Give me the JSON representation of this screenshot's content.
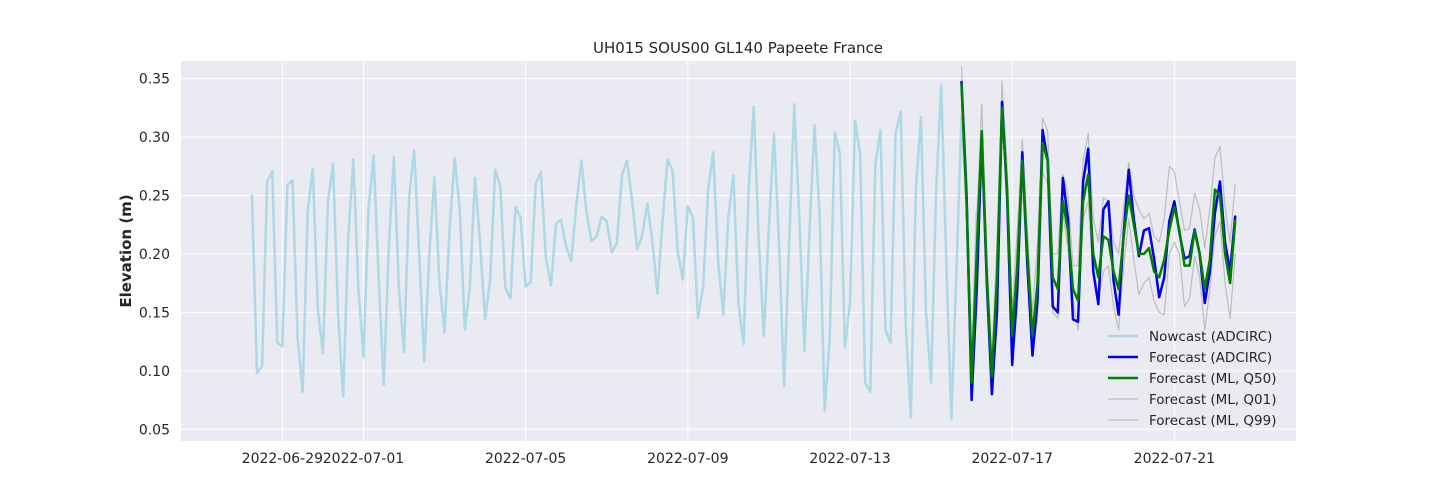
{
  "chart_data": {
    "type": "line",
    "title": "UH015 SOUS00 GL140 Papeete France",
    "xlabel": "",
    "ylabel": "Elevation (m)",
    "xlim": [
      "2022-06-26T12:00",
      "2022-07-24T00:00"
    ],
    "ylim": [
      0.04,
      0.365
    ],
    "x_ticks": [
      "2022-06-29",
      "2022-07-01",
      "2022-07-05",
      "2022-07-09",
      "2022-07-13",
      "2022-07-17",
      "2022-07-21"
    ],
    "y_ticks": [
      "0.05",
      "0.10",
      "0.15",
      "0.20",
      "0.25",
      "0.30",
      "0.35"
    ],
    "grid": true,
    "legend_position": "lower-right",
    "series": [
      {
        "name": "Nowcast (ADCIRC)",
        "color": "#add8e6",
        "start": "2022-06-28T06:00",
        "step_hours": 3,
        "values": [
          0.25,
          0.098,
          0.104,
          0.262,
          0.271,
          0.124,
          0.121,
          0.259,
          0.263,
          0.128,
          0.082,
          0.236,
          0.273,
          0.153,
          0.115,
          0.245,
          0.277,
          0.148,
          0.078,
          0.214,
          0.281,
          0.17,
          0.112,
          0.238,
          0.284,
          0.18,
          0.088,
          0.205,
          0.283,
          0.17,
          0.116,
          0.248,
          0.289,
          0.2,
          0.108,
          0.2,
          0.266,
          0.175,
          0.133,
          0.222,
          0.282,
          0.238,
          0.135,
          0.172,
          0.265,
          0.21,
          0.144,
          0.178,
          0.272,
          0.258,
          0.171,
          0.162,
          0.24,
          0.231,
          0.172,
          0.176,
          0.26,
          0.27,
          0.197,
          0.173,
          0.226,
          0.229,
          0.206,
          0.194,
          0.242,
          0.28,
          0.236,
          0.211,
          0.215,
          0.232,
          0.228,
          0.201,
          0.209,
          0.267,
          0.28,
          0.246,
          0.204,
          0.216,
          0.243,
          0.211,
          0.166,
          0.228,
          0.281,
          0.271,
          0.202,
          0.178,
          0.241,
          0.231,
          0.145,
          0.171,
          0.254,
          0.287,
          0.193,
          0.148,
          0.232,
          0.267,
          0.157,
          0.123,
          0.255,
          0.326,
          0.211,
          0.13,
          0.224,
          0.303,
          0.209,
          0.087,
          0.21,
          0.328,
          0.232,
          0.117,
          0.218,
          0.31,
          0.234,
          0.066,
          0.128,
          0.304,
          0.286,
          0.12,
          0.158,
          0.314,
          0.285,
          0.09,
          0.082,
          0.277,
          0.306,
          0.135,
          0.124,
          0.303,
          0.322,
          0.14,
          0.06,
          0.256,
          0.317,
          0.15,
          0.09,
          0.255,
          0.344,
          0.193,
          0.059,
          0.186,
          0.318,
          0.24,
          0.088,
          0.236
        ]
      },
      {
        "name": "Forecast (ADCIRC)",
        "color": "#0000ee",
        "start": "2022-07-15T18:00",
        "step_hours": 3,
        "values": [
          0.347,
          0.25,
          0.075,
          0.17,
          0.3,
          0.175,
          0.08,
          0.15,
          0.33,
          0.25,
          0.105,
          0.17,
          0.287,
          0.19,
          0.113,
          0.16,
          0.306,
          0.28,
          0.155,
          0.15,
          0.265,
          0.23,
          0.144,
          0.142,
          0.262,
          0.29,
          0.185,
          0.157,
          0.238,
          0.245,
          0.177,
          0.148,
          0.218,
          0.272,
          0.23,
          0.198,
          0.22,
          0.222,
          0.196,
          0.163,
          0.18,
          0.228,
          0.245,
          0.218,
          0.196,
          0.198,
          0.221,
          0.2,
          0.158,
          0.185,
          0.235,
          0.262,
          0.21,
          0.185,
          0.232
        ]
      },
      {
        "name": "Forecast (ML, Q50)",
        "color": "#008000",
        "start": "2022-07-15T18:00",
        "step_hours": 3,
        "values": [
          0.345,
          0.245,
          0.09,
          0.2,
          0.305,
          0.18,
          0.095,
          0.18,
          0.325,
          0.255,
          0.13,
          0.19,
          0.28,
          0.2,
          0.13,
          0.175,
          0.295,
          0.28,
          0.18,
          0.17,
          0.245,
          0.22,
          0.17,
          0.16,
          0.245,
          0.268,
          0.2,
          0.18,
          0.215,
          0.212,
          0.185,
          0.17,
          0.215,
          0.25,
          0.225,
          0.2,
          0.2,
          0.205,
          0.185,
          0.18,
          0.195,
          0.22,
          0.24,
          0.22,
          0.19,
          0.19,
          0.22,
          0.2,
          0.17,
          0.195,
          0.255,
          0.25,
          0.2,
          0.175,
          0.228
        ]
      },
      {
        "name": "Forecast (ML, Q01)",
        "color": "#bdbdbd",
        "start": "2022-07-15T18:00",
        "step_hours": 3,
        "values": [
          0.33,
          0.23,
          0.09,
          0.15,
          0.29,
          0.17,
          0.08,
          0.14,
          0.315,
          0.24,
          0.11,
          0.15,
          0.26,
          0.185,
          0.115,
          0.145,
          0.27,
          0.26,
          0.15,
          0.145,
          0.235,
          0.205,
          0.16,
          0.135,
          0.23,
          0.245,
          0.18,
          0.16,
          0.185,
          0.19,
          0.155,
          0.135,
          0.19,
          0.23,
          0.195,
          0.165,
          0.175,
          0.18,
          0.16,
          0.15,
          0.148,
          0.2,
          0.21,
          0.2,
          0.155,
          0.162,
          0.198,
          0.18,
          0.135,
          0.17,
          0.215,
          0.228,
          0.175,
          0.145,
          0.2
        ]
      },
      {
        "name": "Forecast (ML, Q99)",
        "color": "#bdbdbd",
        "start": "2022-07-15T18:00",
        "step_hours": 3,
        "values": [
          0.36,
          0.27,
          0.11,
          0.23,
          0.328,
          0.2,
          0.11,
          0.21,
          0.348,
          0.275,
          0.15,
          0.22,
          0.298,
          0.22,
          0.15,
          0.21,
          0.316,
          0.305,
          0.2,
          0.2,
          0.268,
          0.25,
          0.19,
          0.19,
          0.28,
          0.303,
          0.23,
          0.21,
          0.248,
          0.245,
          0.21,
          0.2,
          0.24,
          0.278,
          0.25,
          0.238,
          0.23,
          0.235,
          0.215,
          0.21,
          0.23,
          0.275,
          0.27,
          0.245,
          0.22,
          0.222,
          0.252,
          0.238,
          0.205,
          0.238,
          0.282,
          0.292,
          0.24,
          0.21,
          0.26
        ]
      }
    ]
  }
}
